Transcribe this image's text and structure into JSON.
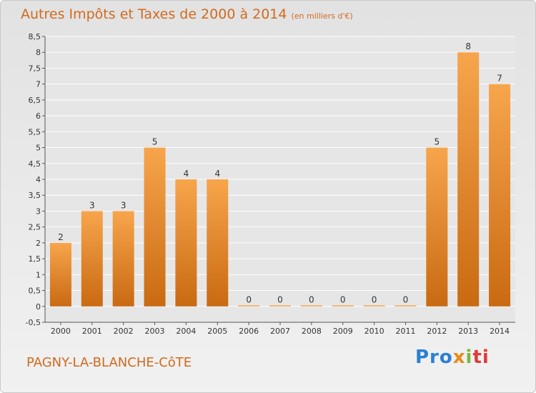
{
  "header": {
    "title": "Autres Impôts et Taxes de 2000 à 2014",
    "subtitle": "(en milliers d'€)"
  },
  "footer": {
    "place": "PAGNY-LA-BLANCHE-CôTE",
    "logo_parts": [
      "Pro",
      "x",
      "i",
      "ti"
    ]
  },
  "colors": {
    "bar_top": "#f7a54c",
    "bar_bottom": "#c96a12",
    "text": "#d06a1e",
    "grid": "#ffffff",
    "axis": "#555555"
  },
  "chart_data": {
    "type": "bar",
    "categories": [
      "2000",
      "2001",
      "2002",
      "2003",
      "2004",
      "2005",
      "2006",
      "2007",
      "2008",
      "2009",
      "2010",
      "2011",
      "2012",
      "2013",
      "2014"
    ],
    "values": [
      2,
      3,
      3,
      5,
      4,
      4,
      0,
      0,
      0,
      0,
      0,
      0,
      5,
      8,
      7
    ],
    "data_labels": [
      "2",
      "3",
      "3",
      "5",
      "4",
      "4",
      "0",
      "0",
      "0",
      "0",
      "0",
      "0",
      "5",
      "8",
      "7"
    ],
    "title": "Autres Impôts et Taxes de 2000 à 2014",
    "subtitle": "(en milliers d'€)",
    "xlabel": "",
    "ylabel": "",
    "ylim": [
      -0.5,
      8.5
    ],
    "yticks": [
      "-0,5",
      "0",
      "0,5",
      "1",
      "1,5",
      "2",
      "2,5",
      "3",
      "3,5",
      "4",
      "4,5",
      "5",
      "5,5",
      "6",
      "6,5",
      "7",
      "7,5",
      "8",
      "8,5"
    ],
    "ytick_values": [
      -0.5,
      0,
      0.5,
      1,
      1.5,
      2,
      2.5,
      3,
      3.5,
      4,
      4.5,
      5,
      5.5,
      6,
      6.5,
      7,
      7.5,
      8,
      8.5
    ],
    "grid": true,
    "legend": "none"
  }
}
